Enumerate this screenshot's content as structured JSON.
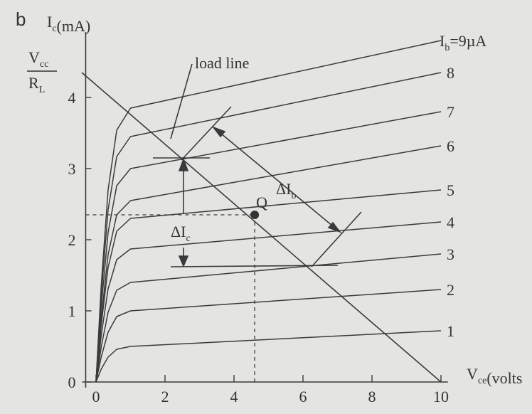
{
  "panel_label": "b",
  "chart_data": {
    "type": "line",
    "y_label": {
      "main": "I",
      "sub": "c",
      "rest": "(mA)"
    },
    "x_label": {
      "main": "V",
      "sub": "ce",
      "rest": "(volts"
    },
    "intercept_label": {
      "num_main": "V",
      "num_sub": "cc",
      "den_main": "R",
      "den_sub": "L"
    },
    "curve_label_prefix": {
      "main": "I",
      "sub": "b",
      "rest": "="
    },
    "x": [
      0,
      0.15,
      0.35,
      0.6,
      1,
      10
    ],
    "series": [
      {
        "name": "1",
        "values": [
          0,
          0.18,
          0.35,
          0.46,
          0.5,
          0.72
        ]
      },
      {
        "name": "2",
        "values": [
          0,
          0.35,
          0.7,
          0.92,
          1.0,
          1.3
        ]
      },
      {
        "name": "3",
        "values": [
          0,
          0.49,
          0.98,
          1.29,
          1.4,
          1.8
        ]
      },
      {
        "name": "4",
        "values": [
          0,
          0.65,
          1.31,
          1.72,
          1.87,
          2.25
        ]
      },
      {
        "name": "5",
        "values": [
          0,
          0.8,
          1.61,
          2.12,
          2.3,
          2.7
        ]
      },
      {
        "name": "6",
        "values": [
          0,
          0.89,
          1.79,
          2.35,
          2.55,
          3.32
        ]
      },
      {
        "name": "7",
        "values": [
          0,
          1.05,
          2.1,
          2.76,
          3.0,
          3.8
        ]
      },
      {
        "name": "8",
        "values": [
          0,
          1.21,
          2.42,
          3.17,
          3.45,
          4.35
        ]
      },
      {
        "name": "9µA",
        "values": [
          0,
          1.35,
          2.7,
          3.54,
          3.85,
          4.8
        ]
      }
    ],
    "color": "#3a3a3a",
    "xlim": [
      -0.3,
      10.2
    ],
    "ylim": [
      0,
      4.92
    ],
    "xticks": [
      0,
      2,
      4,
      6,
      8,
      10
    ],
    "yticks": [
      0,
      1,
      2,
      3,
      4
    ],
    "load_line": {
      "label": "load line",
      "x": [
        0,
        10
      ],
      "values": [
        4.35,
        0
      ]
    },
    "q_point": {
      "label": "Q",
      "x": 4.6,
      "y": 2.35
    },
    "annotations": {
      "delta_ic": {
        "main": "ΔI",
        "sub": "c"
      },
      "delta_ib": {
        "main": "ΔI",
        "sub": "b"
      }
    }
  }
}
